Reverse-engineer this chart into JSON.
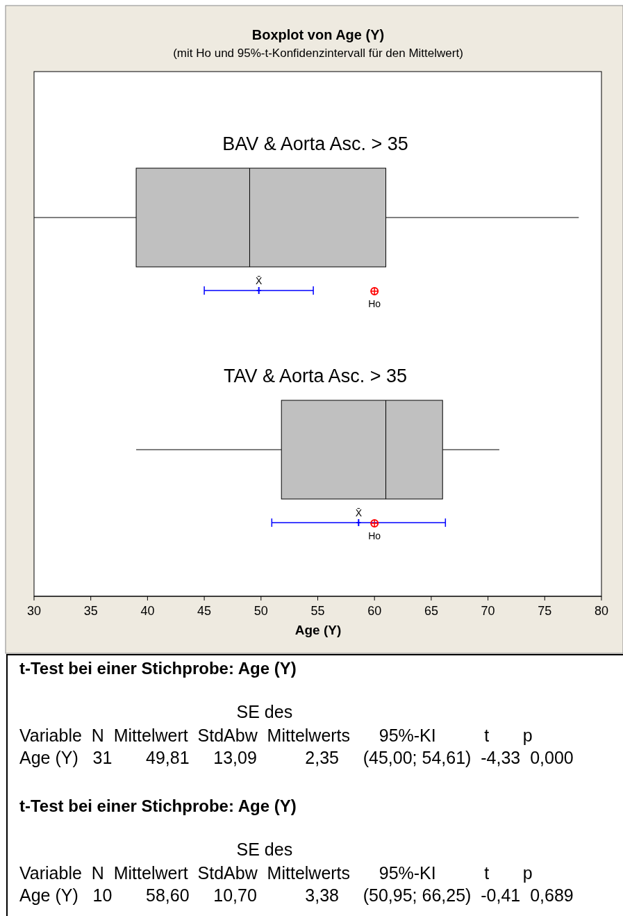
{
  "chart_data": {
    "type": "box",
    "title": "Boxplot von Age (Y)",
    "subtitle": "(mit Ho und 95%-t-Konfidenzintervall für den Mittelwert)",
    "xlabel": "Age (Y)",
    "orientation": "horizontal",
    "categories": [
      "BAV & Aorta Asc. > 35",
      "TAV & Aorta Asc. > 35"
    ],
    "series": [
      {
        "color": "#c0c0c0",
        "boxes": [
          {
            "low": 30,
            "q1": 39,
            "median": 49,
            "q3": 61,
            "high": 78
          },
          {
            "low": 39,
            "q1": 51.8,
            "median": 61,
            "q3": 66,
            "high": 71
          }
        ]
      },
      {
        "type": "scatter",
        "name": "X̄",
        "color": "#0000ff",
        "marker": "cross",
        "values": [
          49.81,
          58.6
        ],
        "errors": [
          [
            45.0,
            54.61
          ],
          [
            50.95,
            66.25
          ]
        ]
      },
      {
        "type": "scatter",
        "name": "Ho",
        "color": "#ff0000",
        "marker": "circle",
        "values": [
          60,
          60
        ]
      }
    ],
    "xlim": [
      30,
      80
    ],
    "xticks": [
      30,
      35,
      40,
      45,
      50,
      55,
      60,
      65,
      70,
      75,
      80
    ],
    "grid": false,
    "legend": false,
    "annotations": [
      "t-Test bei einer Stichprobe: Age (Y)",
      "                                             SE des",
      "Variable  N  Mittelwert  StdAbw  Mittelwerts      95%-KI          t       p",
      "Age (Y)   31       49,81     13,09          2,35     (45,00; 54,61)  -4,33  0,000",
      "t-Test bei einer Stichprobe: Age (Y)",
      "                                             SE des",
      "Variable  N  Mittelwert  StdAbw  Mittelwerts      95%-KI          t       p",
      "Age (Y)   10       58,60     10,70          3,38     (50,95; 66,25)  -0,41  0,689"
    ]
  }
}
